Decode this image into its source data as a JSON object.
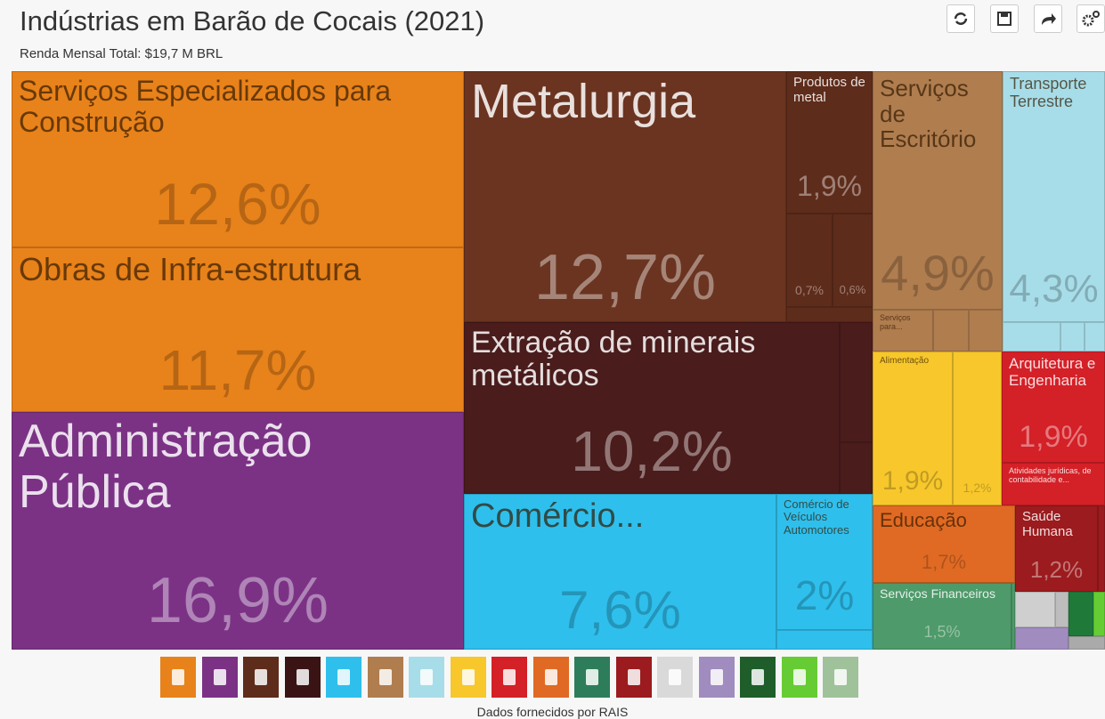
{
  "chart_data": {
    "type": "treemap",
    "title": "Indústrias em Barão de Cocais (2021)",
    "subtitle": "Renda Mensal Total: $19,7 M BRL",
    "categories": [
      "Serviços Especializados para Construção",
      "Obras de Infra-estrutura",
      "Administração Pública",
      "Metalurgia",
      "Produtos de metal",
      null,
      null,
      "Extração de minerais metálicos",
      "Serviços de Escritório",
      "Serviços para...",
      "Transporte Terrestre",
      "Alimentação",
      null,
      "Arquitetura e Engenharia",
      "Atividades jurídicas, de contabilidade e...",
      "Comércio...",
      "Comércio de Veículos Automotores",
      "Educação",
      "Saúde Humana",
      "Serviços Financeiros"
    ],
    "values": [
      12.6,
      11.7,
      16.9,
      12.7,
      1.9,
      0.7,
      0.6,
      10.2,
      4.9,
      0.4,
      4.3,
      1.9,
      1.2,
      1.9,
      0.7,
      7.6,
      2,
      1.7,
      1.2,
      1.5
    ],
    "value_labels": [
      "12,6%",
      "11,7%",
      "16,9%",
      "12,7%",
      "1,9%",
      "0,7%",
      "0,6%",
      "10,2%",
      "4,9%",
      null,
      "4,3%",
      "1,9%",
      "1,2%",
      "1,9%",
      null,
      "7,6%",
      "2%",
      "1,7%",
      "1,2%",
      "1,5%"
    ],
    "colors": [
      "#e8821a",
      "#e8821a",
      "#7b3285",
      "#6b3420",
      "#5e2c1b",
      "#5e2c1b",
      "#5e2c1b",
      "#4a1c1c",
      "#b07d4f",
      "#b07d4f",
      "#a7dde8",
      "#f7c72c",
      "#f7c72c",
      "#d42027",
      "#d42027",
      "#2fbfec",
      "#2fbfec",
      "#e06a23",
      "#9b1b1e",
      "#4e9a6a"
    ],
    "source": "Dados fornecidos por RAIS"
  }
}
